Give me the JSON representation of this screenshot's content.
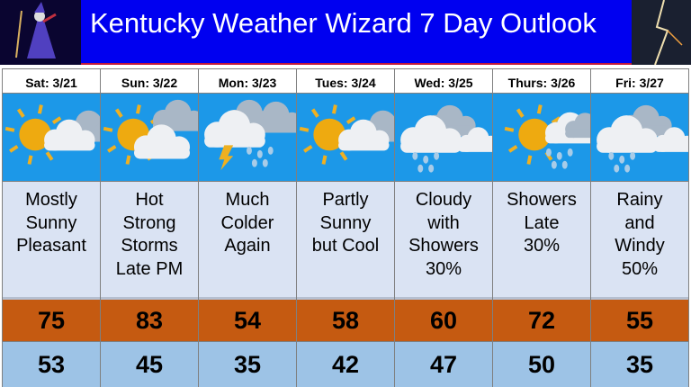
{
  "header": {
    "title": "Kentucky Weather Wizard 7 Day Outlook",
    "logo": "wizard",
    "corner_image": "lightning"
  },
  "colors": {
    "header": "#0000f0",
    "sky": "#1c98e8",
    "description": "#dae3f3",
    "high": "#c55a11",
    "low": "#9dc3e6"
  },
  "days": [
    {
      "date": "Sat: 3/21",
      "icon": "sun-cloud-icon",
      "desc": [
        "Mostly",
        "Sunny",
        "Pleasant"
      ],
      "high": "75",
      "low": "53"
    },
    {
      "date": "Sun: 3/22",
      "icon": "sun-storm-icon",
      "desc": [
        "Hot",
        "Strong",
        "Storms",
        "Late PM"
      ],
      "high": "83",
      "low": "45"
    },
    {
      "date": "Mon: 3/23",
      "icon": "storm-rain-icon",
      "desc": [
        "Much",
        "Colder",
        "Again"
      ],
      "high": "54",
      "low": "35"
    },
    {
      "date": "Tues: 3/24",
      "icon": "sun-cloud-icon",
      "desc": [
        "Partly",
        "Sunny",
        "but Cool"
      ],
      "high": "58",
      "low": "42"
    },
    {
      "date": "Wed: 3/25",
      "icon": "cloud-rain-icon",
      "desc": [
        "Cloudy",
        "with",
        "Showers",
        "30%"
      ],
      "high": "60",
      "low": "47"
    },
    {
      "date": "Thurs: 3/26",
      "icon": "sun-rain-icon",
      "desc": [
        "Showers",
        "Late",
        "30%"
      ],
      "high": "72",
      "low": "50"
    },
    {
      "date": "Fri: 3/27",
      "icon": "cloud-rain-icon",
      "desc": [
        "Rainy",
        "and",
        "Windy",
        "50%"
      ],
      "high": "55",
      "low": "35"
    }
  ]
}
